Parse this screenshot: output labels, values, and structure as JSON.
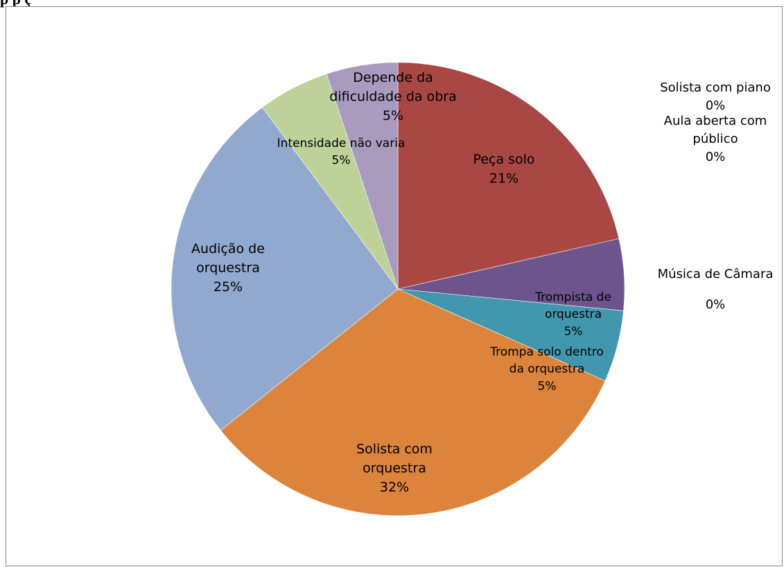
{
  "heading_text": "p p ç",
  "chart_data": {
    "type": "pie",
    "title": "",
    "start_angle": "12 o'clock, clockwise",
    "slices": [
      {
        "label": "Peça solo",
        "percent": "21%",
        "value": 21,
        "color": "#a84744"
      },
      {
        "label": "Trompista de orquestra",
        "percent": "5%",
        "value": 5,
        "color": "#6e548d"
      },
      {
        "label": "Trompa solo dentro da orquestra",
        "percent": "5%",
        "value": 5,
        "color": "#4197ad"
      },
      {
        "label": "Solista com orquestra",
        "percent": "32%",
        "value": 32,
        "color": "#dc843b"
      },
      {
        "label": "Audição de orquestra",
        "percent": "25%",
        "value": 25,
        "color": "#91a9cf"
      },
      {
        "label": "Intensidade não varia",
        "percent": "5%",
        "value": 5,
        "color": "#bdd198"
      },
      {
        "label": "Depende da dificuldade da obra",
        "percent": "5%",
        "value": 5,
        "color": "#a99bbe"
      },
      {
        "label": "Solista com piano",
        "percent": "0%",
        "value": 0,
        "color": "#a84744"
      },
      {
        "label": "Aula aberta com público",
        "percent": "0%",
        "value": 0,
        "color": "#a84744"
      },
      {
        "label": "Música de Câmara",
        "percent": "0%",
        "value": 0,
        "color": "#a84744"
      }
    ]
  }
}
